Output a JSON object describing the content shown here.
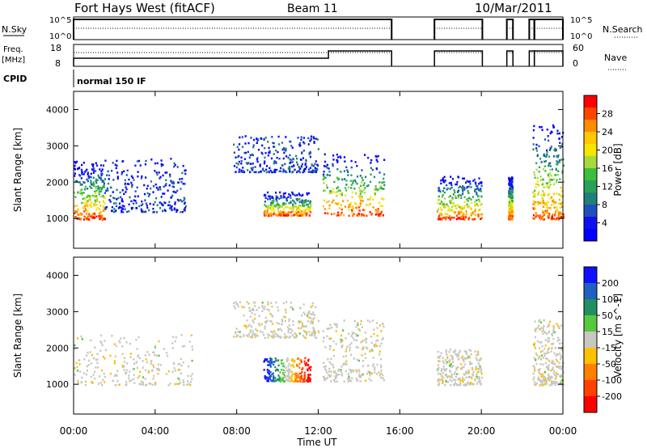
{
  "header": {
    "title": "Fort Hays West (fitACF)",
    "beam": "Beam 11",
    "date": "10/Mar/2011"
  },
  "panels": {
    "nsky": {
      "left_label": "N.Sky",
      "right_label": "N.Search",
      "tick_top": "10^5",
      "tick_bottom": "10^0"
    },
    "freq": {
      "left_label_1": "Freq.",
      "left_label_2": "[MHz]",
      "right_label": "Nave",
      "left_ticks": [
        "18",
        "8"
      ],
      "right_ticks": [
        "60",
        "0"
      ]
    },
    "cpid": {
      "label": "CPID",
      "mode": "normal 150 IF"
    }
  },
  "axis_titles": {
    "x": "Time UT",
    "y_power": "Slant Range [km]",
    "y_velocity": "Slant Range [km]"
  },
  "colorbars": {
    "power": {
      "label": "Power [dB]",
      "ticks": [
        "28",
        "24",
        "20",
        "16",
        "12",
        "8",
        "4"
      ],
      "colors": [
        "#ff0000",
        "#ff4400",
        "#ff8c00",
        "#ffc800",
        "#f5e600",
        "#a8d83a",
        "#3cbf3c",
        "#2aa05a",
        "#207f7a",
        "#1f4fbf",
        "#1010ee",
        "#0000ff"
      ]
    },
    "velocity": {
      "label": "Velocity [m s^-1]",
      "ticks": [
        "200",
        "100",
        "50",
        "15",
        "-15",
        "-50",
        "-100",
        "-200"
      ],
      "colors": [
        "#1010ff",
        "#2060c0",
        "#209060",
        "#58c840",
        "#c8c8c0",
        "#ffc000",
        "#ff8000",
        "#ff4000",
        "#ff0000"
      ]
    }
  },
  "chart_data": {
    "type": "heatmap",
    "xlabel": "Time UT",
    "x_ticks": [
      "00:00",
      "04:00",
      "08:00",
      "12:00",
      "16:00",
      "20:00",
      "00:00"
    ],
    "xlim_hours": [
      0,
      24
    ],
    "ylabel": "Slant Range [km]",
    "y_ticks": [
      "1000",
      "2000",
      "3000",
      "4000"
    ],
    "ylim_km": [
      180,
      4500
    ],
    "panels": [
      {
        "name": "Power",
        "units": "dB",
        "scale": [
          0,
          30
        ],
        "echo_regions": [
          {
            "t0": 0.0,
            "t1": 1.5,
            "r0": 1000,
            "r1": 2600,
            "dominant": "high power near 1000-1300 km"
          },
          {
            "t0": 1.5,
            "t1": 5.5,
            "r0": 1200,
            "r1": 2700,
            "dominant": "low power band rising with time"
          },
          {
            "t0": 9.3,
            "t1": 11.6,
            "r0": 1100,
            "r1": 1750,
            "dominant": "moderate power patch"
          },
          {
            "t0": 7.8,
            "t1": 12.0,
            "r0": 2300,
            "r1": 3300,
            "dominant": "weak scatter"
          },
          {
            "t0": 12.2,
            "t1": 15.2,
            "r0": 1100,
            "r1": 2800,
            "dominant": "moderate power, decreasing range"
          },
          {
            "t0": 17.8,
            "t1": 20.0,
            "r0": 1000,
            "r1": 2200,
            "dominant": "mixed moderate power"
          },
          {
            "t0": 21.3,
            "t1": 21.5,
            "r0": 1000,
            "r1": 2200,
            "dominant": "narrow strip"
          },
          {
            "t0": 22.5,
            "t1": 24.0,
            "r0": 1000,
            "r1": 3600,
            "dominant": "mixed power"
          }
        ]
      },
      {
        "name": "Velocity",
        "units": "m s^-1",
        "scale": [
          -200,
          200
        ],
        "echo_regions": [
          {
            "t0": 0.0,
            "t1": 5.8,
            "r0": 1000,
            "r1": 2400,
            "dominant": "near-zero (grey) with negative (orange) scatter"
          },
          {
            "t0": 9.3,
            "t1": 11.6,
            "r0": 1100,
            "r1": 1750,
            "dominant": "positive (blue) to negative (red) gradient"
          },
          {
            "t0": 7.8,
            "t1": 12.0,
            "r0": 2300,
            "r1": 3300,
            "dominant": "near-zero grey"
          },
          {
            "t0": 12.2,
            "t1": 15.2,
            "r0": 1100,
            "r1": 2800,
            "dominant": "near-zero grey with green"
          },
          {
            "t0": 17.8,
            "t1": 20.0,
            "r0": 1000,
            "r1": 2000,
            "dominant": "near-zero grey"
          },
          {
            "t0": 22.5,
            "t1": 24.0,
            "r0": 1000,
            "r1": 2800,
            "dominant": "near-zero grey with scatter"
          }
        ]
      }
    ],
    "operating_intervals_hours": [
      [
        0,
        15.6
      ],
      [
        17.7,
        20.05
      ],
      [
        21.25,
        21.55
      ],
      [
        22.35,
        22.6
      ],
      [
        22.6,
        24.0
      ]
    ],
    "freq_step_hour": 12.5,
    "freq_levels_mhz": [
      10,
      12
    ],
    "nave_level": 40
  }
}
